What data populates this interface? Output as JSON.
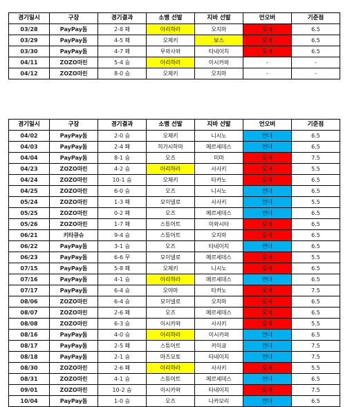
{
  "colors": {
    "yellow": "#ffff00",
    "red": "#ff0000",
    "blue": "#00b0f0"
  },
  "headers": [
    "경기일시",
    "구장",
    "경기결과",
    "소뱅 선발",
    "지바 선발",
    "언오버",
    "기준점"
  ],
  "table1": [
    [
      "03/28",
      "PayPay돔",
      "2-8 패",
      "아리하라",
      "오지마",
      "오버",
      "6.5"
    ],
    [
      "03/29",
      "PayPay돔",
      "4-5 패",
      "오제키",
      "보스",
      "오버",
      "6.5"
    ],
    [
      "03/30",
      "PayPay돔",
      "4-7 패",
      "우와사와",
      "타네이치",
      "오버",
      "6.5"
    ],
    [
      "04/11",
      "ZOZO마린",
      "5-4 승",
      "아리하라",
      "이시카와",
      "-",
      "-"
    ],
    [
      "04/12",
      "ZOZO마린",
      "8-0 승",
      "오제키",
      "오지마",
      "-",
      "-"
    ]
  ],
  "table1_fills": [
    [
      null,
      null,
      null,
      "yellow",
      null,
      "red",
      null
    ],
    [
      null,
      null,
      null,
      null,
      "yellow",
      "red",
      null
    ],
    [
      null,
      null,
      null,
      null,
      null,
      "red",
      null
    ],
    [
      null,
      null,
      null,
      "yellow",
      null,
      null,
      null
    ],
    [
      null,
      null,
      null,
      null,
      null,
      null,
      null
    ]
  ],
  "table2": [
    [
      "04/02",
      "PayPay돔",
      "2-0 승",
      "오제키",
      "니시노",
      "언더",
      "6.5"
    ],
    [
      "04/03",
      "PayPay돔",
      "2-4 패",
      "히가시하마",
      "메르세데스",
      "언더",
      "6.5"
    ],
    [
      "04/04",
      "PayPay돔",
      "8-1 승",
      "오즈",
      "미마",
      "오버",
      "7.5"
    ],
    [
      "04/23",
      "ZOZO마린",
      "4-2 승",
      "아리하라",
      "사사키",
      "오버",
      "5.5"
    ],
    [
      "04/24",
      "ZOZO마린",
      "10-1 승",
      "오제키",
      "타카노",
      "오버",
      "6.5"
    ],
    [
      "04/25",
      "ZOZO마린",
      "6-0 승",
      "오즈",
      "니시노",
      "언더",
      "6.5"
    ],
    [
      "05/24",
      "ZOZO마린",
      "1-3 패",
      "모이넬로",
      "사사키",
      "언더",
      "5.5"
    ],
    [
      "05/25",
      "ZOZO마린",
      "0-2 패",
      "오즈",
      "메르세데스",
      "언더",
      "6.5"
    ],
    [
      "05/26",
      "ZOZO마린",
      "1-7 패",
      "스튜어트",
      "이와시타",
      "오버",
      "6.5"
    ],
    [
      "06/21",
      "키타큐슈",
      "9-4 승",
      "스튜어트",
      "오지마",
      "오버",
      "6.5"
    ],
    [
      "06/22",
      "PayPay돔",
      "3-1 승",
      "오즈",
      "타네이치",
      "언더",
      "6.5"
    ],
    [
      "06/23",
      "PayPay돔",
      "6-6 무",
      "모이넬로",
      "메르세데스",
      "오버",
      "5.5"
    ],
    [
      "07/15",
      "PayPay돔",
      "5-8 패",
      "오제키",
      "니시노",
      "오버",
      "6.5"
    ],
    [
      "07/16",
      "PayPay돔",
      "4-1 승",
      "아리하라",
      "메르세데스",
      "언더",
      "6.5"
    ],
    [
      "07/17",
      "PayPay돔",
      "6-4 승",
      "오야마",
      "타카노",
      "오버",
      "7.5"
    ],
    [
      "08/06",
      "ZOZO마린",
      "6-4 승",
      "모이넬로",
      "오지마",
      "오버",
      "6.5"
    ],
    [
      "08/07",
      "ZOZO마린",
      "2-6 패",
      "오즈",
      "메르세데스",
      "오버",
      "6.5"
    ],
    [
      "08/08",
      "ZOZO마린",
      "6-3 승",
      "이시카와",
      "사사키",
      "오버",
      "5.5"
    ],
    [
      "08/16",
      "PayPay돔",
      "4-0 승",
      "아리하라",
      "이시카와",
      "언더",
      "6.5"
    ],
    [
      "08/17",
      "PayPay돔",
      "2-5 패",
      "스튜어트",
      "카이쿄",
      "언더",
      "7.5"
    ],
    [
      "08/18",
      "PayPay돔",
      "2-1 승",
      "마츠모토",
      "타네이치",
      "언더",
      "7.5"
    ],
    [
      "08/30",
      "ZOZO마린",
      "2-6 패",
      "아리하라",
      "사사키",
      "오버",
      "5.5"
    ],
    [
      "08/31",
      "ZOZO마린",
      "4-1 승",
      "스튜어트",
      "메르세데스",
      "언더",
      "6.5"
    ],
    [
      "09/01",
      "ZOZO마린",
      "10-2 승",
      "이시카와",
      "타네이치",
      "오버",
      "7.5"
    ],
    [
      "10/04",
      "PayPay돔",
      "1-0 승",
      "오즈",
      "나카모리",
      "언더",
      "6.5"
    ]
  ],
  "table2_fills": [
    [
      null,
      null,
      null,
      null,
      null,
      "blue",
      null
    ],
    [
      null,
      null,
      null,
      null,
      null,
      "blue",
      null
    ],
    [
      null,
      null,
      null,
      null,
      null,
      "red",
      null
    ],
    [
      null,
      null,
      null,
      "yellow",
      null,
      "red",
      null
    ],
    [
      null,
      null,
      null,
      null,
      null,
      "red",
      null
    ],
    [
      null,
      null,
      null,
      null,
      null,
      "blue",
      null
    ],
    [
      null,
      null,
      null,
      null,
      null,
      "blue",
      null
    ],
    [
      null,
      null,
      null,
      null,
      null,
      "blue",
      null
    ],
    [
      null,
      null,
      null,
      null,
      null,
      "red",
      null
    ],
    [
      null,
      null,
      null,
      null,
      null,
      "red",
      null
    ],
    [
      null,
      null,
      null,
      null,
      null,
      "blue",
      null
    ],
    [
      null,
      null,
      null,
      null,
      null,
      "red",
      null
    ],
    [
      null,
      null,
      null,
      null,
      null,
      "red",
      null
    ],
    [
      null,
      null,
      null,
      "yellow",
      null,
      "blue",
      null
    ],
    [
      null,
      null,
      null,
      null,
      null,
      "red",
      null
    ],
    [
      null,
      null,
      null,
      null,
      null,
      "red",
      null
    ],
    [
      null,
      null,
      null,
      null,
      null,
      "red",
      null
    ],
    [
      null,
      null,
      null,
      null,
      null,
      "red",
      null
    ],
    [
      null,
      null,
      null,
      "yellow",
      null,
      "blue",
      null
    ],
    [
      null,
      null,
      null,
      null,
      null,
      "blue",
      null
    ],
    [
      null,
      null,
      null,
      null,
      null,
      "blue",
      null
    ],
    [
      null,
      null,
      null,
      "yellow",
      null,
      "red",
      null
    ],
    [
      null,
      null,
      null,
      null,
      null,
      "blue",
      null
    ],
    [
      null,
      null,
      null,
      null,
      null,
      "red",
      null
    ],
    [
      null,
      null,
      null,
      null,
      null,
      "blue",
      null
    ]
  ]
}
